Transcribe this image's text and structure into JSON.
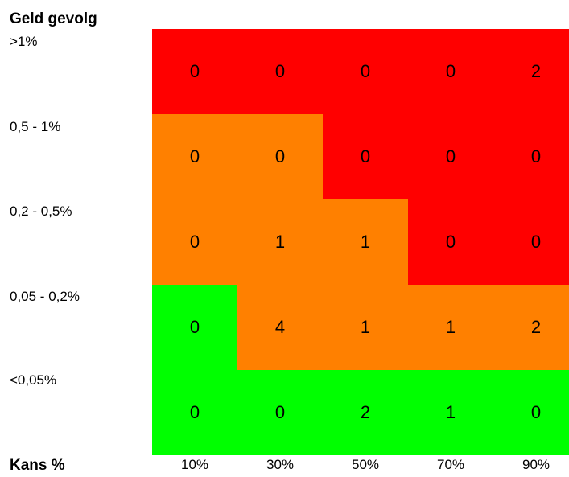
{
  "chart_data": {
    "type": "heatmap",
    "title": "",
    "ylabel": "Geld gevolg",
    "xlabel": "Kans %",
    "x_categories": [
      "10%",
      "30%",
      "50%",
      "70%",
      "90%"
    ],
    "y_categories": [
      ">1%",
      "0,5 - 1%",
      "0,2 - 0,5%",
      "0,05 - 0,2%",
      "<0,05%"
    ],
    "values": [
      [
        0,
        0,
        0,
        0,
        2
      ],
      [
        0,
        0,
        0,
        0,
        0
      ],
      [
        0,
        1,
        1,
        0,
        0
      ],
      [
        0,
        4,
        1,
        1,
        2
      ],
      [
        0,
        0,
        2,
        1,
        0
      ]
    ],
    "risk_levels": [
      [
        "high",
        "high",
        "high",
        "high",
        "high"
      ],
      [
        "medium",
        "medium",
        "high",
        "high",
        "high"
      ],
      [
        "medium",
        "medium",
        "medium",
        "high",
        "high"
      ],
      [
        "low",
        "medium",
        "medium",
        "medium",
        "medium"
      ],
      [
        "low",
        "low",
        "low",
        "low",
        "low"
      ]
    ],
    "colors": {
      "high": "#ff0000",
      "medium": "#ff8000",
      "low": "#00ff00"
    }
  }
}
